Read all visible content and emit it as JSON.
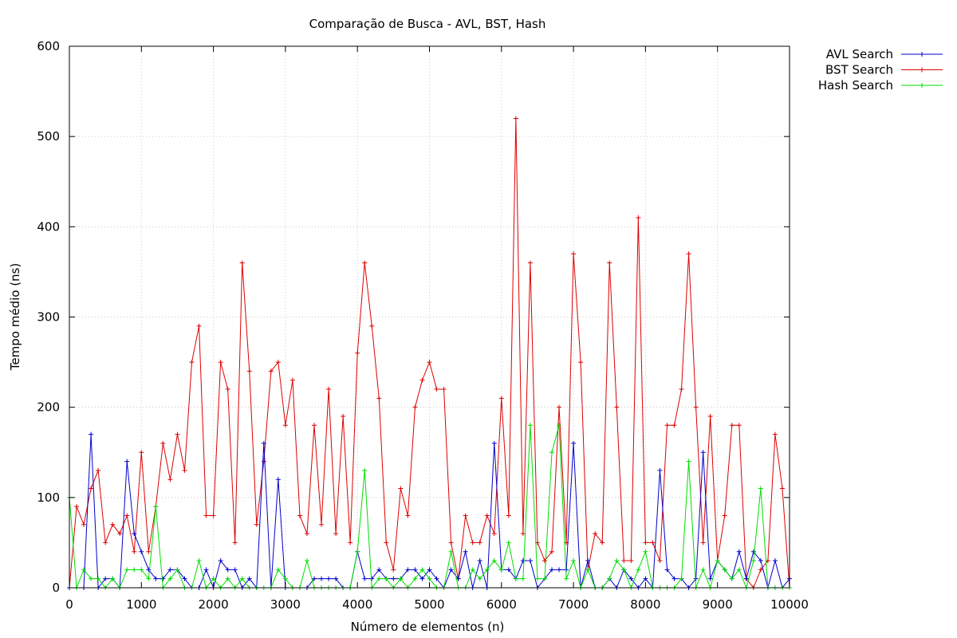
{
  "chart_data": {
    "type": "line",
    "title": "Comparação de Busca - AVL, BST, Hash",
    "xlabel": "Número de elementos (n)",
    "ylabel": "Tempo médio (ns)",
    "xlim": [
      0,
      10000
    ],
    "ylim": [
      0,
      600
    ],
    "xticks": [
      0,
      1000,
      2000,
      3000,
      4000,
      5000,
      6000,
      7000,
      8000,
      9000,
      10000
    ],
    "yticks": [
      0,
      100,
      200,
      300,
      400,
      500,
      600
    ],
    "xtick_labels": [
      "0",
      "1000",
      "2000",
      "3000",
      "4000",
      "5000",
      "6000",
      "7000",
      "8000",
      "9000",
      "10000"
    ],
    "ytick_labels": [
      "0",
      "100",
      "200",
      "300",
      "400",
      "500",
      "600"
    ],
    "grid": true,
    "legend_position": "outside-top-right",
    "x": [
      0,
      100,
      200,
      300,
      400,
      500,
      600,
      700,
      800,
      900,
      1000,
      1100,
      1200,
      1300,
      1400,
      1500,
      1600,
      1700,
      1800,
      1900,
      2000,
      2100,
      2200,
      2300,
      2400,
      2500,
      2600,
      2700,
      2800,
      2900,
      3000,
      3100,
      3200,
      3300,
      3400,
      3500,
      3600,
      3700,
      3800,
      3900,
      4000,
      4100,
      4200,
      4300,
      4400,
      4500,
      4600,
      4700,
      4800,
      4900,
      5000,
      5100,
      5200,
      5300,
      5400,
      5500,
      5600,
      5700,
      5800,
      5900,
      6000,
      6100,
      6200,
      6300,
      6400,
      6500,
      6600,
      6700,
      6800,
      6900,
      7000,
      7100,
      7200,
      7300,
      7400,
      7500,
      7600,
      7700,
      7800,
      7900,
      8000,
      8100,
      8200,
      8300,
      8400,
      8500,
      8600,
      8700,
      8800,
      8900,
      9000,
      9100,
      9200,
      9300,
      9400,
      9500,
      9600,
      9700,
      9800,
      9900,
      10000
    ],
    "series": [
      {
        "name": "AVL Search",
        "color": "#0000cc",
        "values": [
          0,
          0,
          0,
          170,
          0,
          10,
          10,
          0,
          140,
          60,
          40,
          20,
          10,
          10,
          20,
          20,
          10,
          0,
          0,
          20,
          0,
          30,
          20,
          20,
          0,
          10,
          0,
          160,
          0,
          120,
          0,
          0,
          0,
          0,
          10,
          10,
          10,
          10,
          0,
          0,
          40,
          10,
          10,
          20,
          10,
          10,
          10,
          20,
          20,
          10,
          20,
          10,
          0,
          20,
          10,
          40,
          0,
          30,
          0,
          160,
          20,
          20,
          10,
          30,
          30,
          0,
          10,
          20,
          20,
          20,
          160,
          0,
          30,
          0,
          0,
          10,
          0,
          20,
          10,
          0,
          10,
          0,
          130,
          20,
          10,
          10,
          0,
          10,
          150,
          10,
          30,
          20,
          10,
          40,
          10,
          40,
          30,
          0,
          30,
          0,
          10
        ]
      },
      {
        "name": "BST Search",
        "color": "#dd0000",
        "values": [
          0,
          90,
          70,
          110,
          130,
          50,
          70,
          60,
          80,
          40,
          150,
          40,
          90,
          160,
          120,
          170,
          130,
          250,
          290,
          80,
          80,
          250,
          220,
          50,
          360,
          240,
          70,
          140,
          240,
          250,
          180,
          230,
          80,
          60,
          180,
          70,
          220,
          60,
          190,
          50,
          260,
          360,
          290,
          210,
          50,
          20,
          110,
          80,
          200,
          230,
          250,
          220,
          220,
          50,
          10,
          80,
          50,
          50,
          80,
          60,
          210,
          80,
          520,
          60,
          360,
          50,
          30,
          40,
          200,
          50,
          370,
          250,
          20,
          60,
          50,
          360,
          200,
          30,
          30,
          410,
          50,
          50,
          30,
          180,
          180,
          220,
          370,
          200,
          50,
          190,
          30,
          80,
          180,
          180,
          10,
          0,
          20,
          30,
          170,
          110,
          0
        ]
      },
      {
        "name": "Hash Search",
        "color": "#00dd00",
        "values": [
          100,
          0,
          20,
          10,
          10,
          0,
          10,
          0,
          20,
          20,
          20,
          10,
          90,
          0,
          10,
          20,
          0,
          0,
          30,
          0,
          10,
          0,
          10,
          0,
          10,
          0,
          0,
          0,
          0,
          20,
          10,
          0,
          0,
          30,
          0,
          0,
          0,
          0,
          0,
          0,
          40,
          130,
          0,
          10,
          10,
          0,
          10,
          0,
          10,
          20,
          10,
          0,
          0,
          40,
          0,
          0,
          20,
          10,
          20,
          30,
          20,
          50,
          10,
          10,
          180,
          10,
          10,
          150,
          180,
          10,
          30,
          0,
          20,
          0,
          0,
          10,
          30,
          20,
          0,
          20,
          40,
          0,
          0,
          0,
          0,
          10,
          140,
          0,
          20,
          0,
          30,
          20,
          10,
          20,
          0,
          30,
          110,
          0,
          0,
          0,
          0
        ]
      }
    ]
  }
}
